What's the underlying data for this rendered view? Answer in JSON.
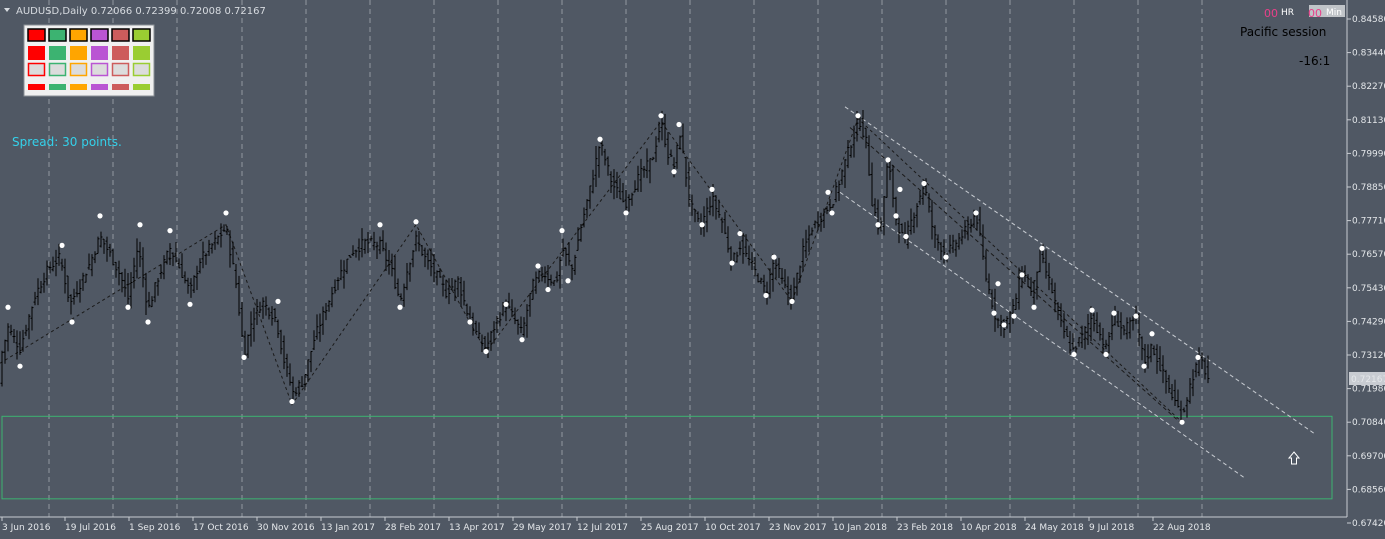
{
  "header": {
    "symbol_line": "AUDUSD,Daily  0.72066 0.72399 0.72008 0.72167",
    "spread_text": "Spread: 30 points.",
    "session_text": "Pacific session",
    "ratio_text": "-16:1",
    "hr_label": "HR",
    "min_label": "Min",
    "hr_counter": "00",
    "min_counter": "00"
  },
  "palette": {
    "row1": [
      "#ff0000",
      "#3cb371",
      "#ffa500",
      "#ba55d3",
      "#cd5c5c",
      "#9acd32"
    ],
    "row2": [
      "#ff0000",
      "#3cb371",
      "#ffa500",
      "#ba55d3",
      "#cd5c5c",
      "#9acd32"
    ],
    "row3": [
      "#ff0000",
      "#3cb371",
      "#ffa500",
      "#ba55d3",
      "#cd5c5c",
      "#9acd32"
    ],
    "row4": [
      "#ff0000",
      "#3cb371",
      "#ffa500",
      "#ba55d3",
      "#cd5c5c",
      "#9acd32"
    ]
  },
  "colors": {
    "background": "#505864",
    "bars": "#000000",
    "grid": "#c8ccd2",
    "zone": "#3cb371",
    "spread": "#34d1ea",
    "pivot": "#ffffff"
  },
  "chart_data": {
    "type": "ohlc",
    "symbol": "AUDUSD",
    "timeframe": "Daily",
    "last_price": "0.72167",
    "y_ticks": [
      "0.84580",
      "0.83440",
      "0.82270",
      "0.81130",
      "0.79990",
      "0.78850",
      "0.77710",
      "0.76570",
      "0.75430",
      "0.74290",
      "0.73120",
      "0.71980",
      "0.70840",
      "0.69700",
      "0.68560",
      "0.67420"
    ],
    "x_ticks": [
      "3 Jun 2016",
      "19 Jul 2016",
      "1 Sep 2016",
      "17 Oct 2016",
      "30 Nov 2016",
      "13 Jan 2017",
      "28 Feb 2017",
      "13 Apr 2017",
      "29 May 2017",
      "12 Jul 2017",
      "25 Aug 2017",
      "10 Oct 2017",
      "23 Nov 2017",
      "10 Jan 2018",
      "23 Feb 2018",
      "10 Apr 2018",
      "24 May 2018",
      "9 Jul 2018",
      "22 Aug 2018"
    ],
    "ylim": [
      0.6742,
      0.8458
    ],
    "path": [
      [
        0,
        0.73
      ],
      [
        8,
        0.741
      ],
      [
        20,
        0.734
      ],
      [
        35,
        0.752
      ],
      [
        48,
        0.761
      ],
      [
        60,
        0.765
      ],
      [
        70,
        0.749
      ],
      [
        80,
        0.756
      ],
      [
        90,
        0.763
      ],
      [
        100,
        0.772
      ],
      [
        110,
        0.766
      ],
      [
        120,
        0.759
      ],
      [
        128,
        0.751
      ],
      [
        138,
        0.769
      ],
      [
        148,
        0.747
      ],
      [
        158,
        0.758
      ],
      [
        170,
        0.768
      ],
      [
        180,
        0.761
      ],
      [
        190,
        0.753
      ],
      [
        200,
        0.764
      ],
      [
        212,
        0.769
      ],
      [
        226,
        0.775
      ],
      [
        236,
        0.756
      ],
      [
        244,
        0.732
      ],
      [
        252,
        0.744
      ],
      [
        262,
        0.75
      ],
      [
        276,
        0.744
      ],
      [
        284,
        0.73
      ],
      [
        293,
        0.719
      ],
      [
        303,
        0.723
      ],
      [
        314,
        0.737
      ],
      [
        326,
        0.748
      ],
      [
        338,
        0.758
      ],
      [
        352,
        0.767
      ],
      [
        365,
        0.77
      ],
      [
        380,
        0.769
      ],
      [
        392,
        0.76
      ],
      [
        400,
        0.75
      ],
      [
        408,
        0.762
      ],
      [
        416,
        0.771
      ],
      [
        426,
        0.764
      ],
      [
        436,
        0.759
      ],
      [
        446,
        0.753
      ],
      [
        458,
        0.757
      ],
      [
        470,
        0.743
      ],
      [
        478,
        0.738
      ],
      [
        486,
        0.734
      ],
      [
        496,
        0.743
      ],
      [
        506,
        0.749
      ],
      [
        514,
        0.744
      ],
      [
        522,
        0.739
      ],
      [
        532,
        0.755
      ],
      [
        542,
        0.76
      ],
      [
        556,
        0.756
      ],
      [
        562,
        0.768
      ],
      [
        572,
        0.761
      ],
      [
        580,
        0.774
      ],
      [
        590,
        0.788
      ],
      [
        600,
        0.804
      ],
      [
        612,
        0.79
      ],
      [
        625,
        0.783
      ],
      [
        640,
        0.793
      ],
      [
        652,
        0.798
      ],
      [
        661,
        0.811
      ],
      [
        668,
        0.8
      ],
      [
        674,
        0.796
      ],
      [
        680,
        0.807
      ],
      [
        690,
        0.783
      ],
      [
        700,
        0.775
      ],
      [
        712,
        0.785
      ],
      [
        722,
        0.777
      ],
      [
        732,
        0.763
      ],
      [
        740,
        0.769
      ],
      [
        752,
        0.762
      ],
      [
        766,
        0.753
      ],
      [
        774,
        0.764
      ],
      [
        784,
        0.755
      ],
      [
        792,
        0.751
      ],
      [
        802,
        0.766
      ],
      [
        812,
        0.775
      ],
      [
        824,
        0.78
      ],
      [
        834,
        0.785
      ],
      [
        843,
        0.795
      ],
      [
        852,
        0.805
      ],
      [
        860,
        0.811
      ],
      [
        866,
        0.804
      ],
      [
        872,
        0.784
      ],
      [
        880,
        0.773
      ],
      [
        888,
        0.798
      ],
      [
        896,
        0.778
      ],
      [
        904,
        0.77
      ],
      [
        914,
        0.78
      ],
      [
        924,
        0.79
      ],
      [
        934,
        0.772
      ],
      [
        946,
        0.766
      ],
      [
        956,
        0.77
      ],
      [
        966,
        0.774
      ],
      [
        976,
        0.78
      ],
      [
        986,
        0.758
      ],
      [
        996,
        0.744
      ],
      [
        1004,
        0.742
      ],
      [
        1014,
        0.748
      ],
      [
        1022,
        0.761
      ],
      [
        1032,
        0.752
      ],
      [
        1040,
        0.766
      ],
      [
        1050,
        0.756
      ],
      [
        1060,
        0.743
      ],
      [
        1072,
        0.733
      ],
      [
        1082,
        0.738
      ],
      [
        1092,
        0.745
      ],
      [
        1106,
        0.734
      ],
      [
        1114,
        0.745
      ],
      [
        1124,
        0.74
      ],
      [
        1136,
        0.744
      ],
      [
        1144,
        0.729
      ],
      [
        1152,
        0.735
      ],
      [
        1162,
        0.726
      ],
      [
        1172,
        0.718
      ],
      [
        1182,
        0.711
      ],
      [
        1192,
        0.724
      ],
      [
        1200,
        0.731
      ],
      [
        1210,
        0.722
      ]
    ],
    "pivots": [
      [
        8,
        0.748
      ],
      [
        20,
        0.728
      ],
      [
        62,
        0.769
      ],
      [
        72,
        0.743
      ],
      [
        100,
        0.779
      ],
      [
        128,
        0.748
      ],
      [
        140,
        0.776
      ],
      [
        148,
        0.743
      ],
      [
        170,
        0.774
      ],
      [
        190,
        0.749
      ],
      [
        226,
        0.78
      ],
      [
        244,
        0.731
      ],
      [
        278,
        0.75
      ],
      [
        292,
        0.716
      ],
      [
        380,
        0.776
      ],
      [
        400,
        0.748
      ],
      [
        416,
        0.777
      ],
      [
        470,
        0.743
      ],
      [
        486,
        0.733
      ],
      [
        506,
        0.749
      ],
      [
        522,
        0.737
      ],
      [
        538,
        0.762
      ],
      [
        548,
        0.754
      ],
      [
        562,
        0.774
      ],
      [
        568,
        0.757
      ],
      [
        600,
        0.805
      ],
      [
        626,
        0.78
      ],
      [
        661,
        0.813
      ],
      [
        674,
        0.794
      ],
      [
        679,
        0.81
      ],
      [
        702,
        0.776
      ],
      [
        712,
        0.788
      ],
      [
        732,
        0.763
      ],
      [
        740,
        0.773
      ],
      [
        766,
        0.752
      ],
      [
        774,
        0.765
      ],
      [
        792,
        0.75
      ],
      [
        828,
        0.787
      ],
      [
        832,
        0.78
      ],
      [
        858,
        0.813
      ],
      [
        878,
        0.776
      ],
      [
        888,
        0.798
      ],
      [
        896,
        0.779
      ],
      [
        900,
        0.788
      ],
      [
        906,
        0.772
      ],
      [
        924,
        0.79
      ],
      [
        946,
        0.765
      ],
      [
        976,
        0.78
      ],
      [
        994,
        0.746
      ],
      [
        998,
        0.756
      ],
      [
        1004,
        0.742
      ],
      [
        1014,
        0.745
      ],
      [
        1022,
        0.759
      ],
      [
        1034,
        0.748
      ],
      [
        1042,
        0.768
      ],
      [
        1074,
        0.732
      ],
      [
        1092,
        0.747
      ],
      [
        1106,
        0.732
      ],
      [
        1114,
        0.746
      ],
      [
        1136,
        0.745
      ],
      [
        1144,
        0.728
      ],
      [
        1152,
        0.739
      ],
      [
        1182,
        0.709
      ],
      [
        1198,
        0.731
      ]
    ],
    "zigzag": [
      [
        0,
        0.729
      ],
      [
        226,
        0.776
      ],
      [
        292,
        0.715
      ],
      [
        416,
        0.776
      ],
      [
        486,
        0.733
      ],
      [
        661,
        0.811
      ],
      [
        792,
        0.75
      ],
      [
        858,
        0.812
      ],
      [
        1182,
        0.709
      ]
    ],
    "channel": [
      [
        [
          845,
          0.816
        ],
        [
          1315,
          0.705
        ]
      ],
      [
        [
          840,
          0.787
        ],
        [
          1245,
          0.69
        ]
      ],
      [
        [
          850,
          0.809
        ],
        [
          1180,
          0.709
        ]
      ]
    ],
    "zone": {
      "top": 0.711,
      "bottom": 0.683
    },
    "bars_per_day": 1.0
  }
}
